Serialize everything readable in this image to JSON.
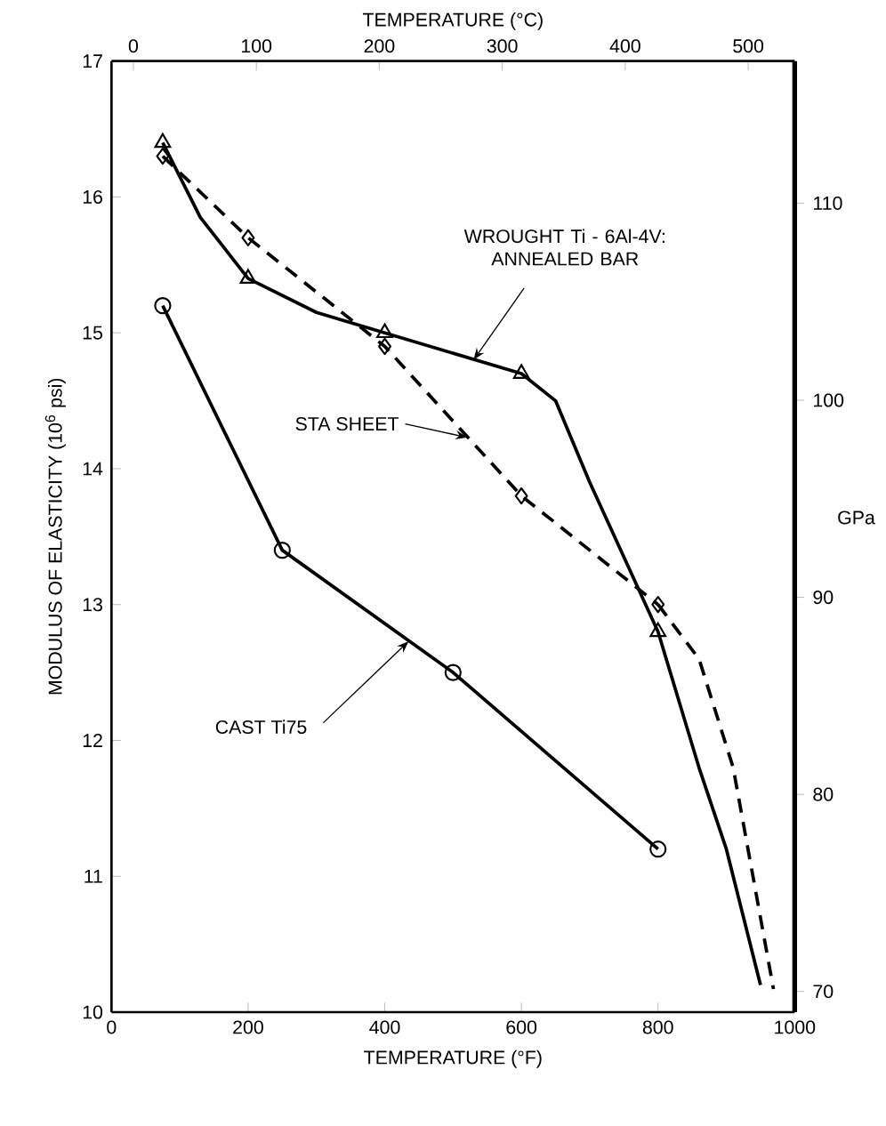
{
  "chart_data": {
    "type": "line",
    "xlabel": "TEMPERATURE (°F)",
    "ylabel": "MODULUS OF ELASTICITY (10$^{6}$ psi)",
    "x2label": "TEMPERATURE (°C)",
    "y2label": "GPa",
    "xlim": [
      0,
      1000
    ],
    "xticks": [
      0,
      200,
      400,
      600,
      800,
      1000
    ],
    "ylim": [
      10,
      17
    ],
    "yticks": [
      10,
      11,
      12,
      13,
      14,
      15,
      16,
      17
    ],
    "x2lim": [
      -17.78,
      537.78
    ],
    "x2ticks": [
      0,
      100,
      200,
      300,
      400,
      500
    ],
    "y2lim": [
      68.95,
      117.21
    ],
    "y2ticks": [
      70,
      80,
      90,
      100,
      110
    ],
    "grid": false,
    "series": [
      {
        "color": "#000000",
        "marker": "none",
        "line_style": "solid",
        "x": [
          75,
          130,
          200,
          300,
          400,
          600,
          650,
          700,
          800,
          860,
          900,
          950
        ],
        "values": [
          16.4,
          15.85,
          15.4,
          15.15,
          15.0,
          14.7,
          14.5,
          13.9,
          12.8,
          11.8,
          11.2,
          10.2
        ]
      },
      {
        "type": "scatter",
        "color": "#000000",
        "marker": "triangle",
        "x": [
          75,
          200,
          400,
          600,
          800
        ],
        "values": [
          16.4,
          15.4,
          15.0,
          14.7,
          12.8
        ]
      },
      {
        "color": "#000000",
        "marker": "diamond",
        "line_style": "dashed",
        "x": [
          75,
          200,
          400,
          600,
          800
        ],
        "values": [
          16.3,
          15.7,
          14.9,
          13.8,
          13.0
        ]
      },
      {
        "color": "#000000",
        "marker": "none",
        "line_style": "dashed",
        "x": [
          800,
          860,
          910,
          969
        ],
        "values": [
          13.0,
          12.6,
          11.8,
          10.17
        ]
      },
      {
        "color": "#000000",
        "marker": "circle",
        "line_style": "solid",
        "x": [
          75,
          250,
          500,
          800
        ],
        "values": [
          15.2,
          13.4,
          12.5,
          11.2
        ]
      }
    ],
    "annotations": [
      {
        "text": "WROUGHT Ti - 6Al-4V: ANNEALED BAR",
        "x": 530,
        "y": 14.8
      },
      {
        "text": "STA SHEET",
        "x": 521,
        "y": 14.23
      },
      {
        "text": "CAST Ti75",
        "x": 435,
        "y": 12.73
      }
    ]
  }
}
